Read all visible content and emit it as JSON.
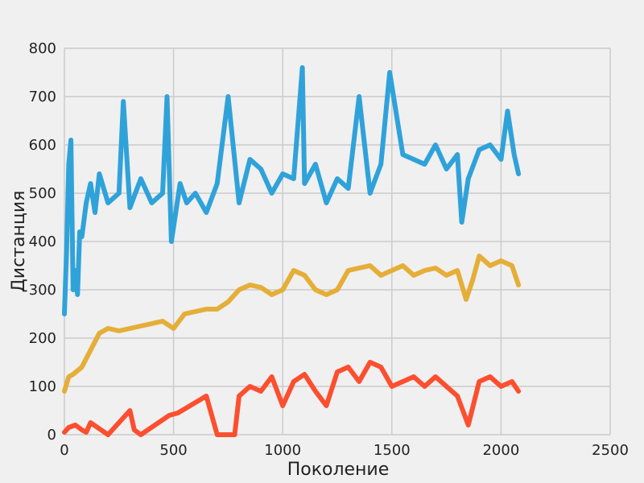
{
  "chart_data": {
    "type": "line",
    "title": "",
    "xlabel": "Поколение",
    "ylabel": "Дистанция",
    "xlim": [
      0,
      2500
    ],
    "ylim": [
      0,
      800
    ],
    "xticks": [
      0,
      500,
      1000,
      1500,
      2000,
      2500
    ],
    "yticks": [
      0,
      100,
      200,
      300,
      400,
      500,
      600,
      700,
      800
    ],
    "grid": true,
    "legend": "none",
    "series": [
      {
        "color": "#30a2da",
        "x": [
          0,
          10,
          20,
          30,
          40,
          50,
          60,
          70,
          80,
          100,
          120,
          140,
          160,
          200,
          250,
          270,
          300,
          350,
          400,
          450,
          470,
          490,
          500,
          530,
          560,
          600,
          650,
          700,
          750,
          800,
          850,
          900,
          950,
          1000,
          1050,
          1090,
          1100,
          1150,
          1200,
          1250,
          1300,
          1350,
          1400,
          1450,
          1490,
          1550,
          1600,
          1650,
          1700,
          1750,
          1800,
          1820,
          1850,
          1900,
          1950,
          2000,
          2030,
          2060,
          2080
        ],
        "values": [
          250,
          380,
          560,
          610,
          300,
          340,
          290,
          420,
          410,
          480,
          520,
          460,
          540,
          480,
          500,
          690,
          470,
          530,
          480,
          500,
          700,
          400,
          430,
          520,
          480,
          500,
          460,
          520,
          700,
          480,
          570,
          550,
          500,
          540,
          530,
          760,
          520,
          560,
          480,
          530,
          510,
          700,
          500,
          560,
          750,
          580,
          570,
          560,
          600,
          550,
          580,
          440,
          530,
          590,
          600,
          570,
          670,
          580,
          540
        ]
      },
      {
        "color": "#e5ae38",
        "x": [
          0,
          20,
          40,
          80,
          120,
          160,
          200,
          250,
          300,
          350,
          400,
          450,
          500,
          550,
          600,
          650,
          700,
          750,
          800,
          850,
          900,
          950,
          1000,
          1050,
          1100,
          1150,
          1200,
          1250,
          1300,
          1350,
          1400,
          1450,
          1500,
          1550,
          1600,
          1650,
          1700,
          1750,
          1800,
          1840,
          1870,
          1900,
          1950,
          2000,
          2050,
          2080
        ],
        "values": [
          90,
          120,
          125,
          140,
          175,
          210,
          220,
          215,
          220,
          225,
          230,
          235,
          220,
          250,
          255,
          260,
          260,
          275,
          300,
          310,
          305,
          290,
          300,
          340,
          330,
          300,
          290,
          300,
          340,
          345,
          350,
          330,
          340,
          350,
          330,
          340,
          345,
          330,
          340,
          280,
          320,
          370,
          350,
          360,
          350,
          310
        ]
      },
      {
        "color": "#fc4f30",
        "x": [
          0,
          20,
          50,
          80,
          100,
          120,
          200,
          300,
          320,
          350,
          480,
          520,
          650,
          700,
          780,
          800,
          850,
          900,
          950,
          1000,
          1050,
          1100,
          1150,
          1200,
          1250,
          1300,
          1350,
          1400,
          1450,
          1500,
          1550,
          1600,
          1650,
          1700,
          1750,
          1800,
          1850,
          1900,
          1950,
          2000,
          2050,
          2080
        ],
        "values": [
          5,
          15,
          20,
          10,
          5,
          25,
          0,
          50,
          10,
          0,
          40,
          45,
          80,
          0,
          0,
          80,
          100,
          90,
          120,
          60,
          110,
          125,
          90,
          60,
          130,
          140,
          110,
          150,
          140,
          100,
          110,
          120,
          100,
          120,
          100,
          80,
          20,
          110,
          120,
          100,
          110,
          90
        ]
      }
    ]
  }
}
